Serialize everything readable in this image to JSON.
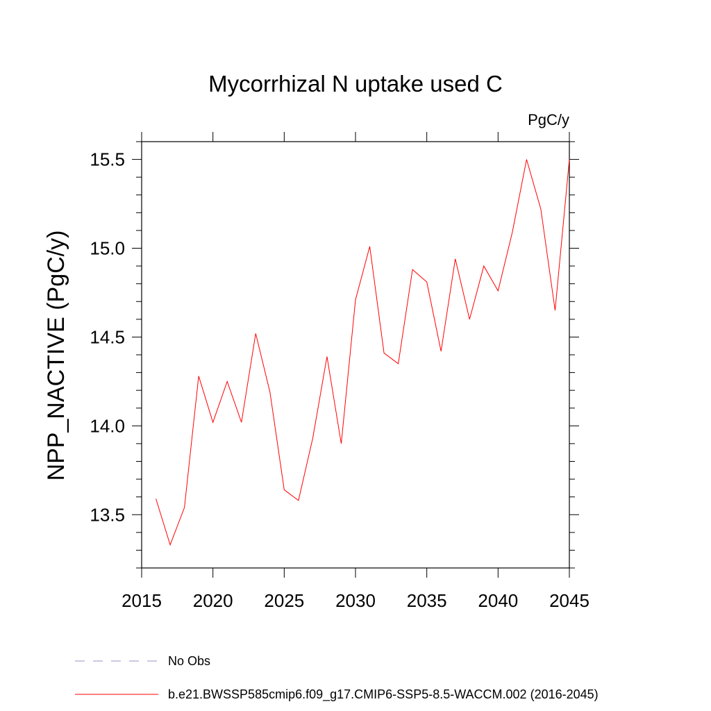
{
  "chart_data": {
    "type": "line",
    "title": "Mycorrhizal N uptake used C",
    "units": "PgC/y",
    "ylabel": "NPP_NACTIVE  (PgC/y)",
    "xlabel": "",
    "xlim": [
      2015,
      2045
    ],
    "ylim": [
      13.2,
      15.6
    ],
    "xticks": [
      2015,
      2020,
      2025,
      2030,
      2035,
      2040,
      2045
    ],
    "yticks": [
      13.5,
      14.0,
      14.5,
      15.0,
      15.5
    ],
    "x": [
      2016,
      2017,
      2018,
      2019,
      2020,
      2021,
      2022,
      2023,
      2024,
      2025,
      2026,
      2027,
      2028,
      2029,
      2030,
      2031,
      2032,
      2033,
      2034,
      2035,
      2036,
      2037,
      2038,
      2039,
      2040,
      2041,
      2042,
      2043,
      2044,
      2045
    ],
    "series": [
      {
        "name": "b.e21.BWSSP585cmip6.f09_g17.CMIP6-SSP5-8.5-WACCM.002 (2016-2045)",
        "color": "#ff0000",
        "style": "solid",
        "values": [
          13.59,
          13.33,
          13.54,
          14.28,
          14.02,
          14.25,
          14.02,
          14.52,
          14.19,
          13.64,
          13.58,
          13.93,
          14.39,
          13.9,
          14.71,
          15.01,
          14.41,
          14.35,
          14.88,
          14.81,
          14.42,
          14.94,
          14.6,
          14.9,
          14.76,
          15.09,
          15.5,
          15.22,
          14.65,
          15.5
        ]
      }
    ],
    "legend": [
      {
        "label": "No Obs",
        "color": "#9a90c8",
        "style": "dashed"
      },
      {
        "label": "b.e21.BWSSP585cmip6.f09_g17.CMIP6-SSP5-8.5-WACCM.002 (2016-2045)",
        "color": "#ff0000",
        "style": "solid"
      }
    ],
    "legend_position": "bottom-left"
  }
}
